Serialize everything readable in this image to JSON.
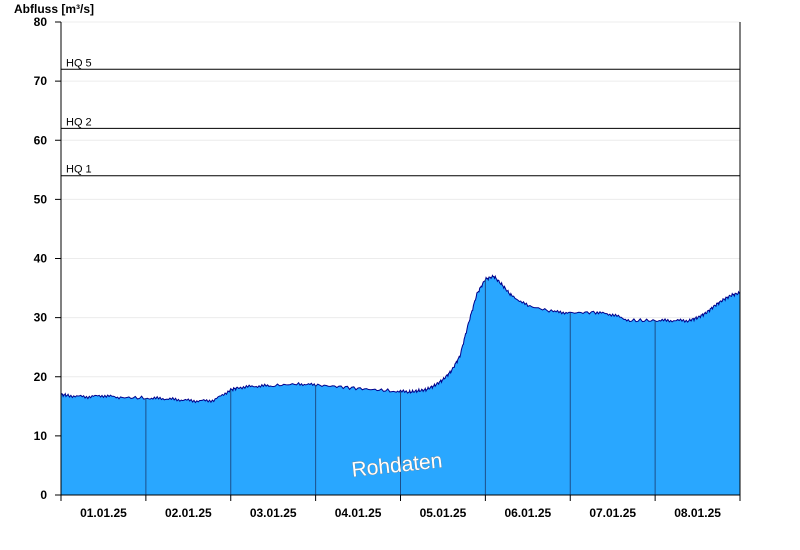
{
  "chart_data": {
    "type": "area",
    "ylabel": "Abfluss [m³/s]",
    "xlabel": "",
    "ylim": [
      0,
      80
    ],
    "yticks": [
      0,
      10,
      20,
      30,
      40,
      50,
      60,
      70,
      80
    ],
    "xlim": [
      0,
      8
    ],
    "x_tick_labels": [
      "01.01.25",
      "02.01.25",
      "03.01.25",
      "04.01.25",
      "05.01.25",
      "06.01.25",
      "07.01.25",
      "08.01.25"
    ],
    "grid": true,
    "thresholds": [
      {
        "label": "HQ 1",
        "value": 54
      },
      {
        "label": "HQ 2",
        "value": 62
      },
      {
        "label": "HQ 5",
        "value": 72
      }
    ],
    "watermark": "Rohdaten",
    "fill_color": "#29a7ff",
    "line_color": "#00008b",
    "x": [
      0,
      0.1,
      0.3,
      0.5,
      0.7,
      1.0,
      1.2,
      1.4,
      1.6,
      1.8,
      2.0,
      2.1,
      2.3,
      2.5,
      2.8,
      3.0,
      3.3,
      3.6,
      3.9,
      4.1,
      4.2,
      4.3,
      4.4,
      4.5,
      4.6,
      4.7,
      4.8,
      4.9,
      5.0,
      5.1,
      5.2,
      5.3,
      5.5,
      5.8,
      6.0,
      6.3,
      6.5,
      6.7,
      7.0,
      7.2,
      7.4,
      7.5,
      7.6,
      7.7,
      7.8,
      7.9,
      8.0
    ],
    "values": [
      17.0,
      16.8,
      16.6,
      16.8,
      16.5,
      16.4,
      16.3,
      16.1,
      15.9,
      16.0,
      17.8,
      18.2,
      18.4,
      18.5,
      18.8,
      18.6,
      18.3,
      17.9,
      17.6,
      17.4,
      17.6,
      17.8,
      18.5,
      19.5,
      21.0,
      23.5,
      29.0,
      34.0,
      36.5,
      37.0,
      35.5,
      33.8,
      32.0,
      31.0,
      30.8,
      30.9,
      30.5,
      29.5,
      29.5,
      29.5,
      29.5,
      30.0,
      30.8,
      32.0,
      33.0,
      33.8,
      34.2
    ]
  }
}
